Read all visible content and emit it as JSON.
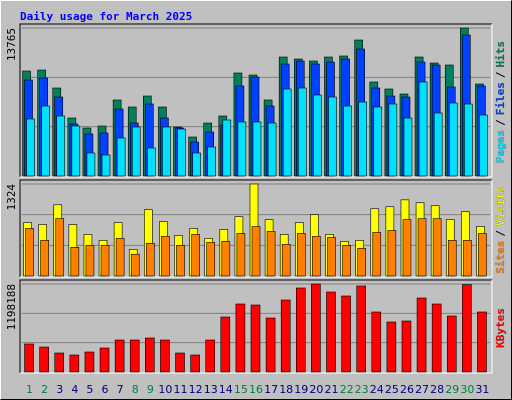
{
  "chart_data": [
    {
      "type": "bar",
      "title": "Daily usage for March 2025",
      "ylim": [
        0,
        13765
      ],
      "yticks": [
        13765
      ],
      "grid": true,
      "legend_separator": "/",
      "series": [
        {
          "name": "Hits",
          "color": "#00805c",
          "values": [
            9765,
            9858,
            8184,
            5394,
            4464,
            4650,
            7068,
            6417,
            7440,
            6417,
            4557,
            3627,
            4929,
            5580,
            9579,
            9393,
            7068,
            11067,
            10881,
            10695,
            11067,
            11160,
            12648,
            8742,
            8091,
            7626,
            11067,
            10509,
            10323,
            13765,
            8556
          ]
        },
        {
          "name": "Files",
          "color": "#0040ff",
          "values": [
            8928,
            9114,
            7347,
            4836,
            3906,
            3999,
            6231,
            4929,
            6696,
            5394,
            4464,
            3162,
            4092,
            4743,
            8370,
            9207,
            6510,
            10416,
            10695,
            10416,
            10602,
            10881,
            11811,
            8184,
            7440,
            7347,
            10602,
            10323,
            8277,
            13113,
            8370
          ]
        },
        {
          "name": "Pages",
          "color": "#00e0ff",
          "values": [
            5301,
            6510,
            5580,
            4650,
            2139,
            1953,
            3534,
            4557,
            2604,
            4557,
            4371,
            2139,
            2697,
            5208,
            5022,
            5022,
            4929,
            8091,
            8184,
            7533,
            7347,
            6510,
            6882,
            6417,
            6696,
            5394,
            8742,
            5859,
            6789,
            6696,
            5673
          ]
        }
      ]
    },
    {
      "type": "bar",
      "ylim": [
        0,
        1324
      ],
      "yticks": [
        1324
      ],
      "grid": true,
      "legend_separator": "/",
      "series": [
        {
          "name": "Visits",
          "color": "#ffff00",
          "values": [
            769,
            740,
            1025,
            740,
            598,
            513,
            769,
            384,
            954,
            783,
            584,
            684,
            541,
            669,
            854,
            1324,
            812,
            598,
            769,
            883,
            598,
            498,
            513,
            968,
            997,
            1096,
            1054,
            1011,
            812,
            926,
            712
          ]
        },
        {
          "name": "Sites",
          "color": "#ff8000",
          "values": [
            684,
            513,
            826,
            413,
            441,
            441,
            541,
            313,
            470,
            570,
            441,
            598,
            484,
            498,
            612,
            712,
            641,
            456,
            612,
            570,
            555,
            441,
            399,
            627,
            655,
            812,
            826,
            826,
            513,
            513,
            612
          ]
        }
      ]
    },
    {
      "type": "bar",
      "ylim": [
        0,
        1198188
      ],
      "yticks": [
        1198188
      ],
      "grid": true,
      "categories": [
        "1",
        "2",
        "3",
        "4",
        "5",
        "6",
        "7",
        "8",
        "9",
        "10",
        "11",
        "12",
        "13",
        "14",
        "15",
        "16",
        "17",
        "18",
        "19",
        "20",
        "21",
        "22",
        "23",
        "24",
        "25",
        "26",
        "27",
        "28",
        "29",
        "30",
        "31"
      ],
      "category_colors": [
        "#008040",
        "#008040",
        "#000080",
        "#000080",
        "#000080",
        "#000080",
        "#000080",
        "#008040",
        "#008040",
        "#000080",
        "#000080",
        "#000080",
        "#000080",
        "#000080",
        "#008040",
        "#008040",
        "#000080",
        "#000080",
        "#000080",
        "#000080",
        "#000080",
        "#008040",
        "#008040",
        "#000080",
        "#000080",
        "#000080",
        "#000080",
        "#000080",
        "#008040",
        "#008040",
        "#000080"
      ],
      "series": [
        {
          "name": "KBytes",
          "color": "#ff0000",
          "values": [
            381248,
            340400,
            258704,
            231472,
            272320,
            326784,
            435712,
            435712,
            462944,
            435712,
            258704,
            231472,
            435712,
            748880,
            925888,
            912272,
            735264,
            980352,
            1143744,
            1198188,
            1089280,
            1034816,
            1170976,
            816960,
            680800,
            694416,
            1007584,
            925888,
            762496,
            1190000,
            816960
          ]
        }
      ]
    }
  ]
}
